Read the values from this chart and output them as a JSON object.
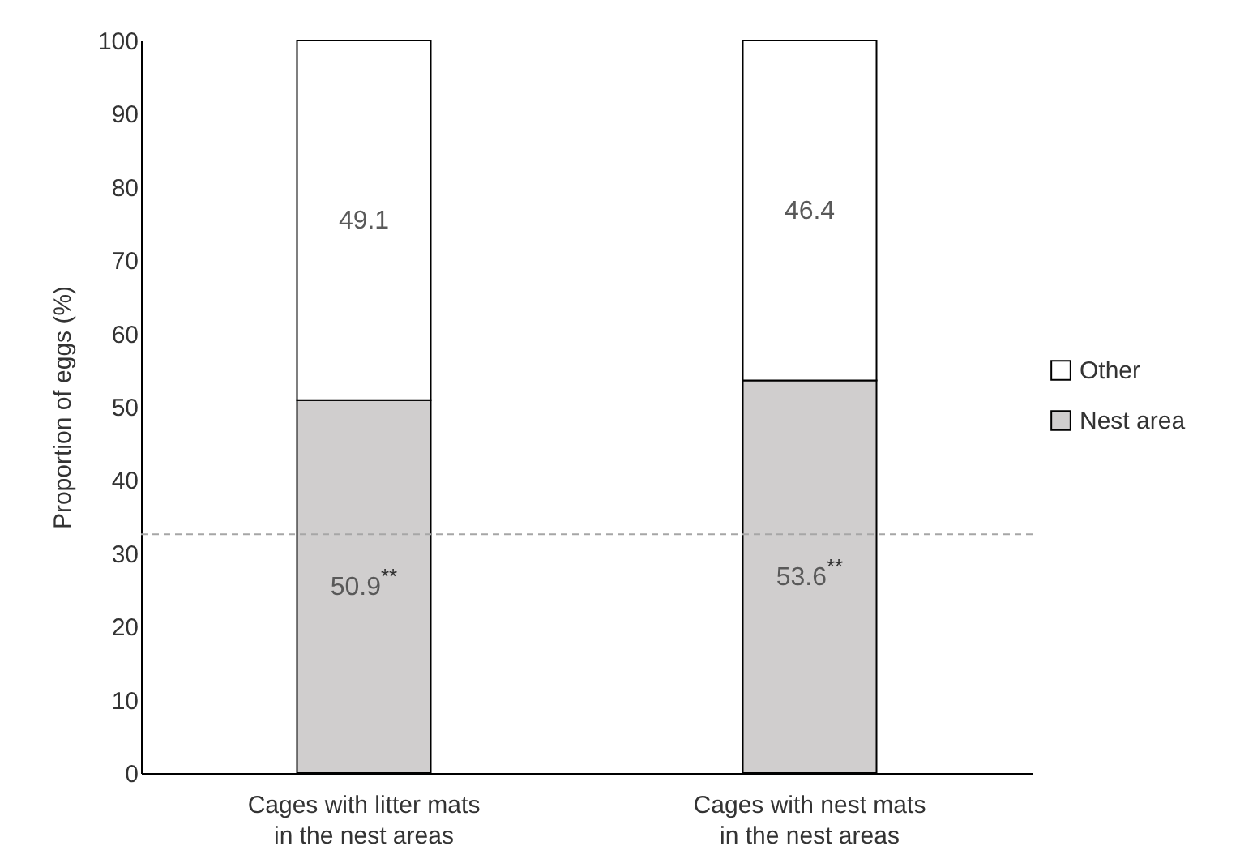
{
  "chart_data": {
    "type": "bar",
    "stacked": true,
    "ylabel": "Proportion of eggs (%)",
    "categories": [
      "Cages with litter mats\nin the nest areas",
      "Cages with  nest mats\nin the nest areas"
    ],
    "series": [
      {
        "name": "Nest area",
        "color": "#d0cece",
        "values": [
          50.9,
          53.6
        ],
        "value_labels": [
          "50.9$^{**}$",
          "53.6$^{**}$"
        ]
      },
      {
        "name": "Other",
        "color": "#ffffff",
        "values": [
          49.1,
          46.4
        ],
        "value_labels": [
          "49.1",
          "46.4"
        ]
      }
    ],
    "ylim": [
      0,
      100
    ],
    "yticks": [
      0,
      10,
      20,
      30,
      40,
      50,
      60,
      70,
      80,
      90,
      100
    ],
    "ref_lines": [
      {
        "axis": "y",
        "value": 32.6,
        "color": "#a6a6a6",
        "line_style": "dashed"
      }
    ],
    "legend": "right",
    "grid": false
  }
}
